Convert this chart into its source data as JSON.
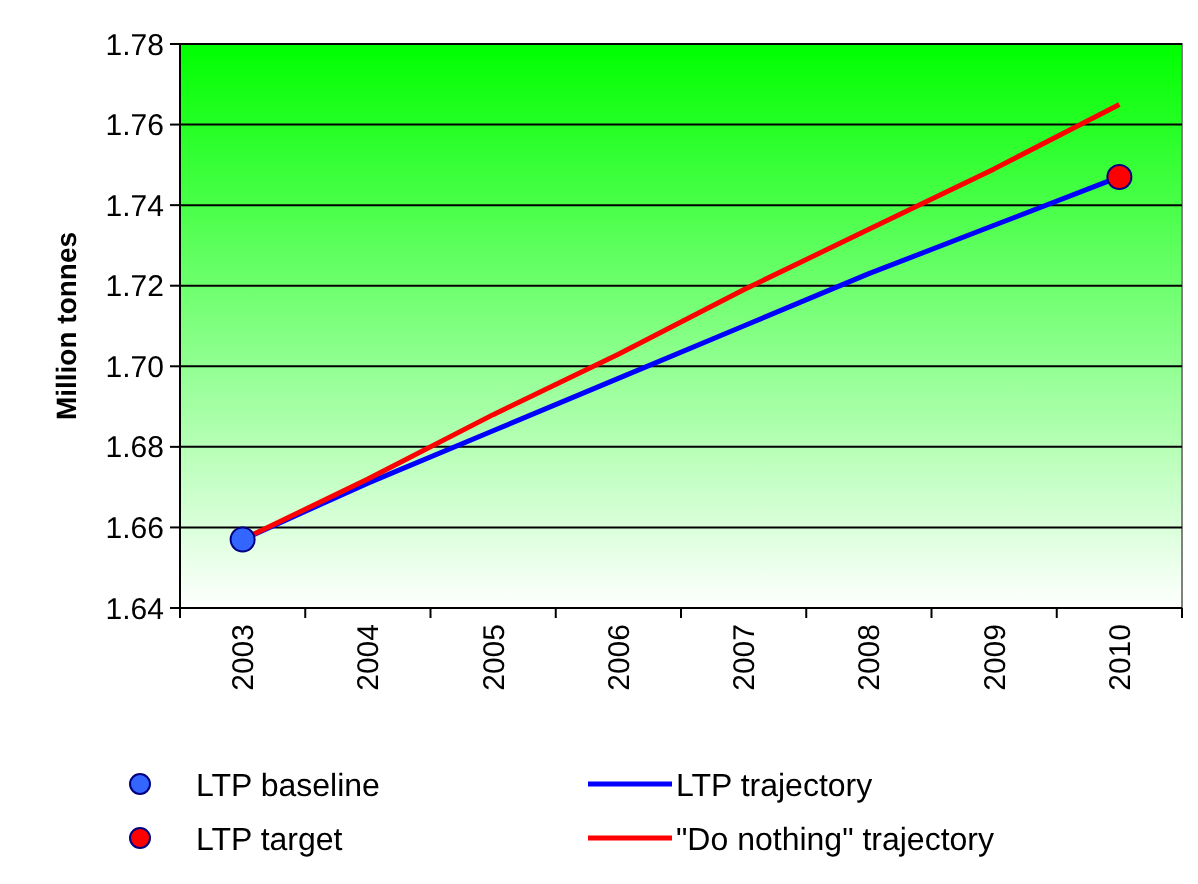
{
  "chart_data": {
    "type": "line",
    "ylabel": "Million tonnes",
    "categories": [
      "2003",
      "2004",
      "2005",
      "2006",
      "2007",
      "2008",
      "2009",
      "2010"
    ],
    "series": [
      {
        "name": "LTP baseline",
        "type": "scatter",
        "marker": "circle",
        "color": "#3366ff",
        "values": [
          1.657,
          null,
          null,
          null,
          null,
          null,
          null,
          null
        ]
      },
      {
        "name": "LTP target",
        "type": "scatter",
        "marker": "circle",
        "color": "#ff0000",
        "values": [
          null,
          null,
          null,
          null,
          null,
          null,
          null,
          1.747
        ]
      },
      {
        "name": "LTP trajectory",
        "color": "#0000ff",
        "values": [
          1.657,
          1.671,
          1.684,
          1.697,
          1.71,
          1.723,
          1.735,
          1.747
        ]
      },
      {
        "name": "\"Do nothing\" trajectory",
        "color": "#ff0000",
        "values": [
          1.657,
          1.672,
          1.688,
          1.703,
          1.719,
          1.734,
          1.749,
          1.765
        ]
      }
    ],
    "ylim": [
      1.64,
      1.78
    ],
    "yticks": [
      1.64,
      1.66,
      1.68,
      {
        "value": 1.7,
        "label": "1.70"
      },
      1.72,
      1.74,
      1.76,
      1.78
    ],
    "grid": "y",
    "legend": "bottom",
    "line_style": "solid"
  }
}
